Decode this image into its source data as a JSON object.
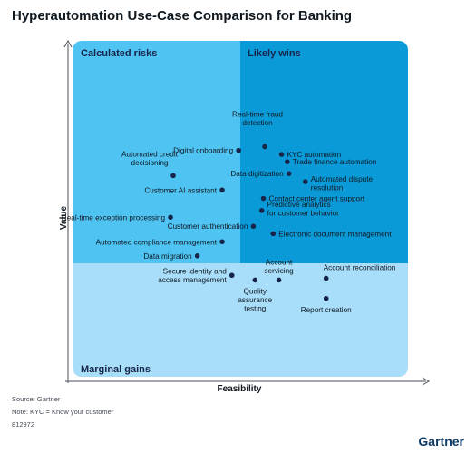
{
  "title": "Hyperautomation Use-Case Comparison for Banking",
  "colors": {
    "calculated": "#4fc3f2",
    "likely": "#0b9ad8",
    "marginal": "#a9defa",
    "dot": "#16254a",
    "axis": "#4a4f5a"
  },
  "chart_data": {
    "type": "scatter",
    "title": "Hyperautomation Use-Case Comparison for Banking",
    "xlabel": "Feasibility",
    "ylabel": "Value",
    "quadrants": {
      "top_left": "Calculated risks",
      "top_right": "Likely wins",
      "bottom": "Marginal gains"
    },
    "points": [
      {
        "label": "Real-time fraud detection",
        "x": 57.3,
        "y": 68.5
      },
      {
        "label": "Digital onboarding",
        "x": 49.5,
        "y": 67.4
      },
      {
        "label": "KYC automation",
        "x": 62.3,
        "y": 66.2
      },
      {
        "label": "Trade finance automation",
        "x": 64.0,
        "y": 64.0
      },
      {
        "label": "Automated credit decisioning",
        "x": 30.0,
        "y": 59.9
      },
      {
        "label": "Data digitization",
        "x": 64.5,
        "y": 60.5
      },
      {
        "label": "Automated dispute resolution",
        "x": 69.4,
        "y": 58.1
      },
      {
        "label": "Customer AI assistant",
        "x": 44.6,
        "y": 55.6
      },
      {
        "label": "Contact center agent support",
        "x": 56.9,
        "y": 53.1
      },
      {
        "label": "Predictive analytics for customer behavior",
        "x": 56.4,
        "y": 49.5
      },
      {
        "label": "Real-time exception processing",
        "x": 29.2,
        "y": 47.5
      },
      {
        "label": "Customer authentication",
        "x": 53.9,
        "y": 44.8
      },
      {
        "label": "Electronic document management",
        "x": 59.8,
        "y": 42.6
      },
      {
        "label": "Automated compliance management",
        "x": 44.6,
        "y": 40.2
      },
      {
        "label": "Data migration",
        "x": 37.2,
        "y": 36.0
      },
      {
        "label": "Secure identity and access management",
        "x": 47.5,
        "y": 30.2
      },
      {
        "label": "Account servicing",
        "x": 61.5,
        "y": 28.8
      },
      {
        "label": "Quality assurance testing",
        "x": 54.4,
        "y": 28.8
      },
      {
        "label": "Account reconciliation",
        "x": 75.6,
        "y": 29.3
      },
      {
        "label": "Report creation",
        "x": 75.6,
        "y": 23.3
      }
    ]
  },
  "footer": {
    "source": "Source: Gartner",
    "note": "Note: KYC = Know your customer",
    "id": "812972",
    "brand": "Gartner"
  }
}
